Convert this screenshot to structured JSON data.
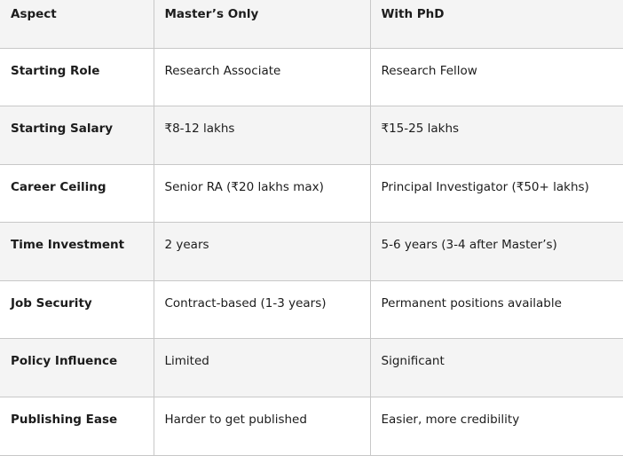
{
  "headers": [
    "Aspect",
    "Master’s Only",
    "With PhD"
  ],
  "rows": [
    [
      "Starting Role",
      "Research Associate",
      "Research Fellow"
    ],
    [
      "Starting Salary",
      "₹8-12 lakhs",
      "₹15-25 lakhs"
    ],
    [
      "Career Ceiling",
      "Senior RA (₹20 lakhs max)",
      "Principal Investigator (₹50+ lakhs)"
    ],
    [
      "Time Investment",
      "2 years",
      "5-6 years (3-4 after Master’s)"
    ],
    [
      "Job Security",
      "Contract-based (1-3 years)",
      "Permanent positions available"
    ],
    [
      "Policy Influence",
      "Limited",
      "Significant"
    ],
    [
      "Publishing Ease",
      "Harder to get published",
      "Easier, more credibility"
    ]
  ]
}
